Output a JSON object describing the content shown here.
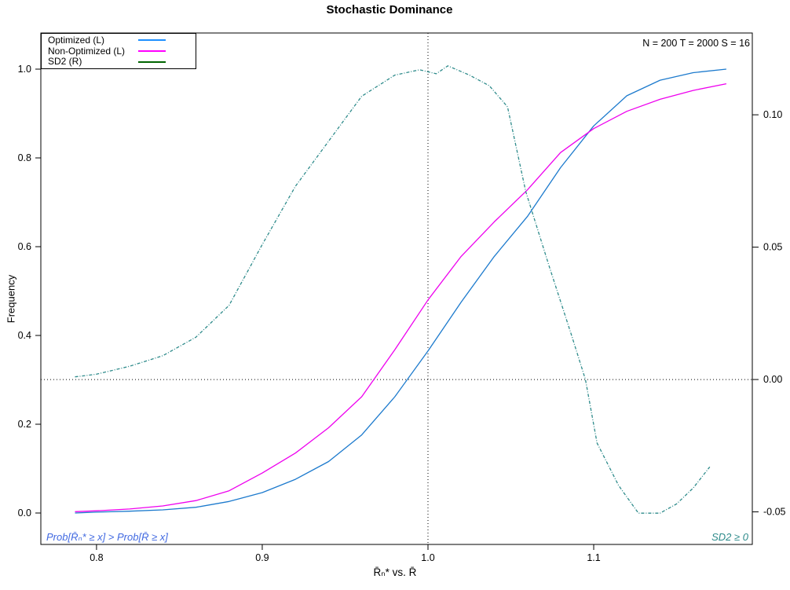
{
  "title": "Stochastic Dominance",
  "params_label": "N = 200  T = 2000  S = 16",
  "legend": {
    "items": [
      {
        "label": "Optimized (L)",
        "color": "#1E90FF"
      },
      {
        "label": "Non-Optimized (L)",
        "color": "#FF00FF"
      },
      {
        "label": "SD2 (R)",
        "color": "#006400"
      }
    ]
  },
  "annotations": {
    "bottom_left": {
      "text": "Prob[R̄ₙ* ≥ x] > Prob[R̄ ≥ x]",
      "color": "#4169E1"
    },
    "bottom_right": {
      "text": "SD2 ≥ 0",
      "color": "#2E8B8B"
    }
  },
  "chart_data": {
    "type": "line",
    "title": "Stochastic Dominance",
    "xlabel": "R̄ₙ* vs. R̄",
    "ylabel_left": "Frequency",
    "xlim": [
      0.7664,
      1.1957
    ],
    "ylim_left": [
      -0.0708,
      1.0814
    ],
    "ylim_right": [
      -0.0623,
      0.1309
    ],
    "grid": false,
    "legend_position": "top-left",
    "xticks": {
      "values": [
        0.8,
        0.9,
        1.0,
        1.1
      ],
      "labels": [
        "0.8",
        "0.9",
        "1.0",
        "1.1"
      ]
    },
    "yticks_left": {
      "values": [
        0.0,
        0.2,
        0.4,
        0.6,
        0.8,
        1.0
      ],
      "labels": [
        "0.0",
        "0.2",
        "0.4",
        "0.6",
        "0.8",
        "1.0"
      ]
    },
    "yticks_right": {
      "values": [
        0.1,
        0.05,
        0.0,
        -0.05
      ],
      "labels": [
        "0.10",
        "0.05",
        "0.00",
        "-0.05"
      ]
    },
    "reference_lines": [
      {
        "orientation": "vertical",
        "x": 1.0,
        "style": "dotted",
        "color": "#000000"
      },
      {
        "orientation": "horizontal",
        "axis": "right",
        "y": 0.0,
        "style": "dotted",
        "color": "#000000"
      }
    ],
    "series": [
      {
        "name": "Optimized (L)",
        "axis": "left",
        "color": "#1C7ACD",
        "style": "solid",
        "x": [
          0.787,
          0.8,
          0.82,
          0.84,
          0.86,
          0.88,
          0.9,
          0.92,
          0.94,
          0.96,
          0.98,
          1.0,
          1.02,
          1.04,
          1.06,
          1.08,
          1.1,
          1.12,
          1.14,
          1.16,
          1.18
        ],
        "y": [
          0.0,
          0.002,
          0.004,
          0.007,
          0.013,
          0.026,
          0.046,
          0.076,
          0.116,
          0.176,
          0.262,
          0.365,
          0.475,
          0.578,
          0.668,
          0.778,
          0.872,
          0.94,
          0.975,
          0.992,
          1.0
        ]
      },
      {
        "name": "Non-Optimized (L)",
        "axis": "left",
        "color": "#EE00EE",
        "style": "solid",
        "x": [
          0.787,
          0.8,
          0.82,
          0.84,
          0.86,
          0.88,
          0.9,
          0.92,
          0.94,
          0.96,
          0.98,
          1.0,
          1.02,
          1.04,
          1.06,
          1.08,
          1.1,
          1.12,
          1.14,
          1.16,
          1.18
        ],
        "y": [
          0.003,
          0.005,
          0.009,
          0.016,
          0.028,
          0.05,
          0.09,
          0.135,
          0.192,
          0.262,
          0.368,
          0.48,
          0.578,
          0.656,
          0.728,
          0.812,
          0.866,
          0.905,
          0.932,
          0.952,
          0.967
        ]
      },
      {
        "name": "SD2 (R)",
        "axis": "right",
        "color": "#2E8B8B",
        "style": "dashdot",
        "x": [
          0.787,
          0.8,
          0.82,
          0.84,
          0.86,
          0.88,
          0.9,
          0.92,
          0.94,
          0.96,
          0.98,
          0.995,
          1.005,
          1.012,
          1.025,
          1.037,
          1.048,
          1.059,
          1.073,
          1.087,
          1.095,
          1.102,
          1.115,
          1.127,
          1.14,
          1.15,
          1.16,
          1.17
        ],
        "y": [
          0.001,
          0.002,
          0.005,
          0.009,
          0.016,
          0.028,
          0.051,
          0.073,
          0.09,
          0.107,
          0.115,
          0.117,
          0.1155,
          0.1185,
          0.115,
          0.111,
          0.103,
          0.071,
          0.043,
          0.016,
          0.0,
          -0.024,
          -0.04,
          -0.0505,
          -0.0505,
          -0.047,
          -0.041,
          -0.033
        ]
      }
    ]
  }
}
